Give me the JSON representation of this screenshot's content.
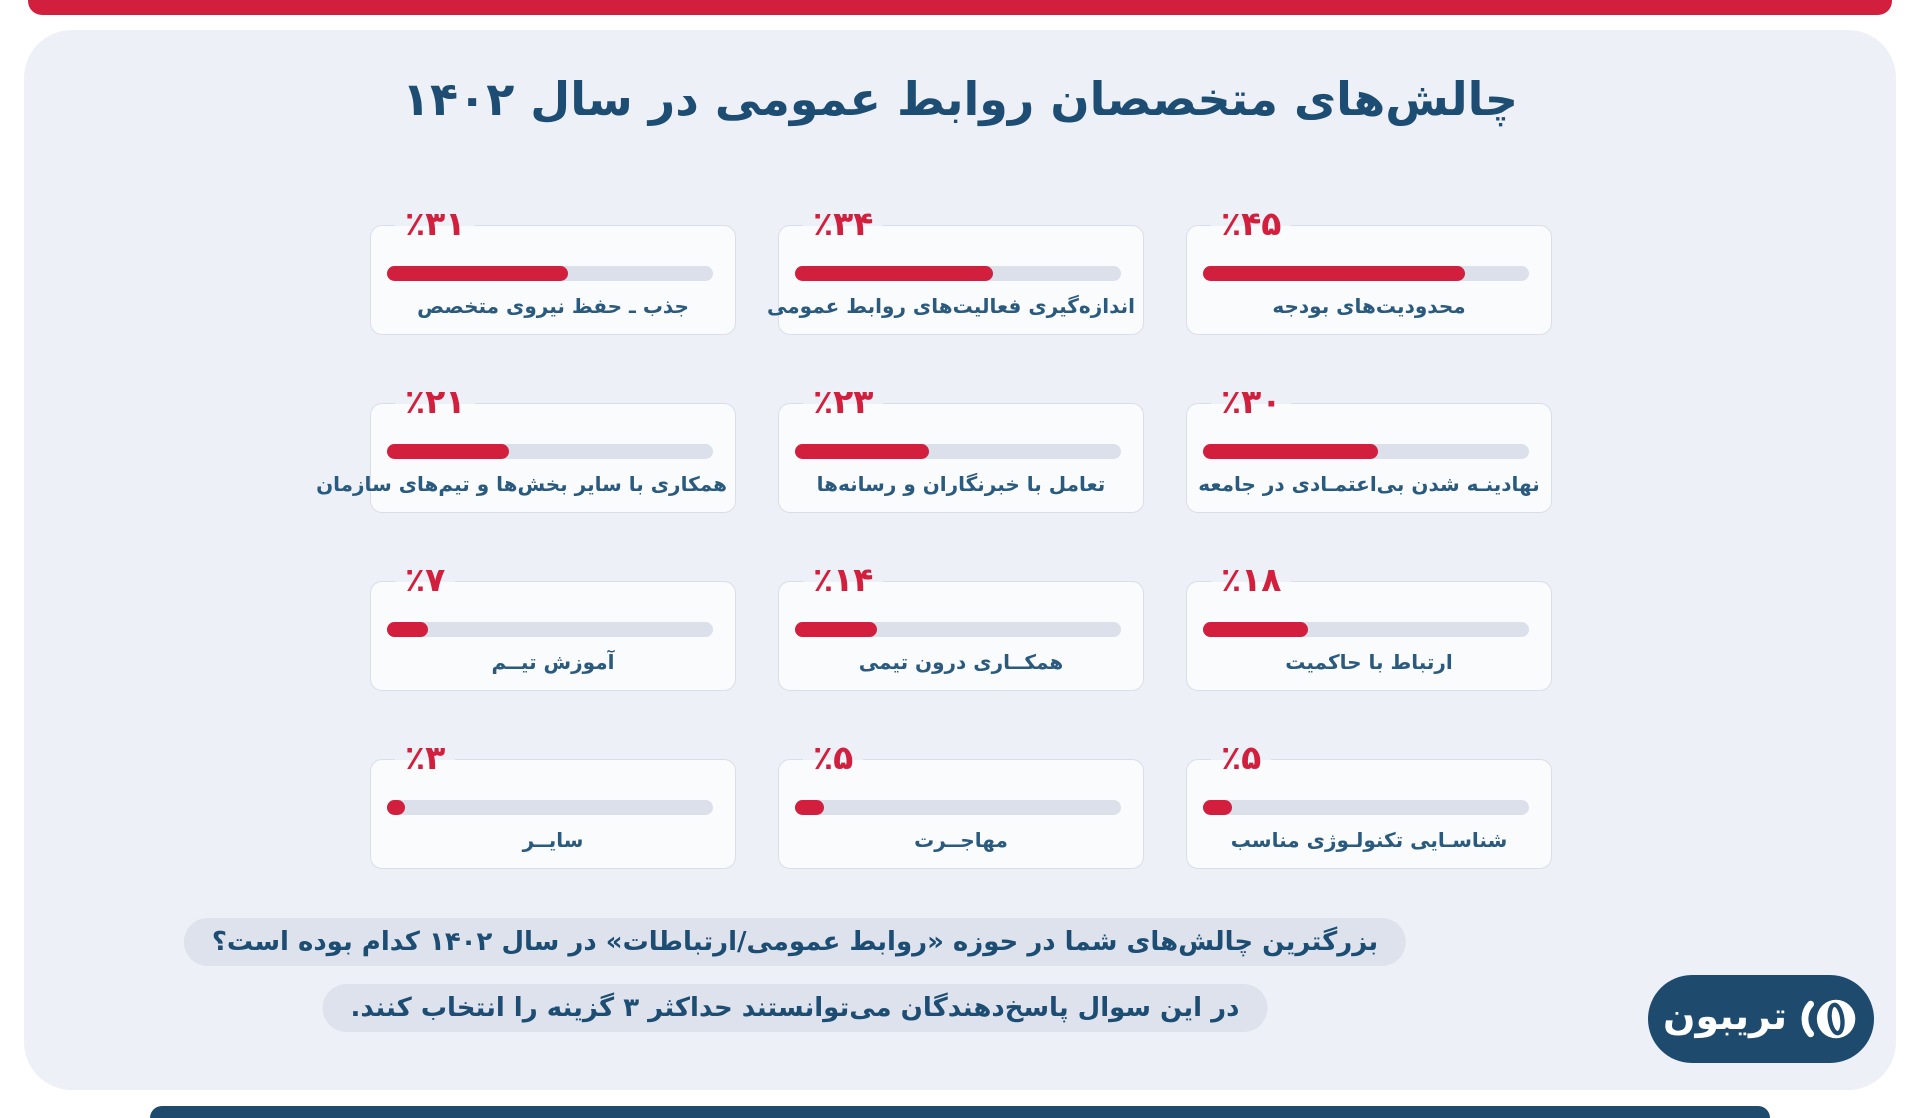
{
  "page": {
    "title": "چالش‌های متخصصان روابط عمومی در سال ۱۴۰۲"
  },
  "cards": [
    {
      "percent_label": "٪۴۵",
      "value": 45,
      "label": "محدودیت‌های بودجه"
    },
    {
      "percent_label": "٪۳۴",
      "value": 34,
      "label": "اندازه‌گیری فعالیت‌های روابط عمومی"
    },
    {
      "percent_label": "٪۳۱",
      "value": 31,
      "label": "جذب ـ حفظ نیروی متخصص"
    },
    {
      "percent_label": "٪۳۰",
      "value": 30,
      "label": "نهادینـه شدن بی‌اعتمـادی در جامعه"
    },
    {
      "percent_label": "٪۲۳",
      "value": 23,
      "label": "تعامل با خبرنگاران و رسانه‌ها"
    },
    {
      "percent_label": "٪۲۱",
      "value": 21,
      "label": "همکاری با سایر بخش‌ها و تیم‌های سازمان"
    },
    {
      "percent_label": "٪۱۸",
      "value": 18,
      "label": "ارتباط با حاکمیت"
    },
    {
      "percent_label": "٪۱۴",
      "value": 14,
      "label": "همکــاری درون تیمی"
    },
    {
      "percent_label": "٪۷",
      "value": 7,
      "label": "آموزش تیــم"
    },
    {
      "percent_label": "٪۵",
      "value": 5,
      "label": "شناسـایی تکنولـوژی مناسب"
    },
    {
      "percent_label": "٪۵",
      "value": 5,
      "label": "مهاجــرت"
    },
    {
      "percent_label": "٪۳",
      "value": 3,
      "label": "سایــر"
    }
  ],
  "footnote": {
    "line1": "بزرگترین چالش‌های شما در حوزه «روابط عمومی/ارتباطات» در سال ۱۴۰۲ کدام بوده است؟",
    "line2": "در این سوال پاسخ‌دهندگان می‌توانستند حداکثر ۳ گزینه را انتخاب کنند."
  },
  "logo": {
    "wordmark": "تریبون",
    "icon": "speaker-lens-icon"
  },
  "colors": {
    "accent_red": "#d31f3e",
    "dark_blue": "#1d4d72",
    "panel_bg": "#edf0f6",
    "track_gray": "#dbe0ea",
    "logo_bg": "#1d4a6d"
  },
  "chart_data": {
    "type": "bar",
    "title": "چالش‌های متخصصان روابط عمومی در سال ۱۴۰۲",
    "categories": [
      "محدودیت‌های بودجه",
      "اندازه‌گیری فعالیت‌های روابط عمومی",
      "جذب ـ حفظ نیروی متخصص",
      "نهادینه شدن بی‌اعتمادی در جامعه",
      "تعامل با خبرنگاران و رسانه‌ها",
      "همکاری با سایر بخش‌ها و تیم‌های سازمان",
      "ارتباط با حاکمیت",
      "همکاری درون تیمی",
      "آموزش تیم",
      "شناسایی تکنولوژی مناسب",
      "مهاجرت",
      "سایر"
    ],
    "values": [
      45,
      34,
      31,
      30,
      23,
      21,
      18,
      14,
      7,
      5,
      5,
      3
    ],
    "unit": "%",
    "xlabel": "",
    "ylabel": "",
    "xlim": [
      0,
      56
    ],
    "grid": false,
    "legend": false,
    "orientation": "horizontal",
    "bar_color": "#d31f3e",
    "track_color": "#dbe0ea",
    "note": "بارها نسبت به حداکثر مقیاس ۵۶٪ رسم شده‌اند"
  }
}
